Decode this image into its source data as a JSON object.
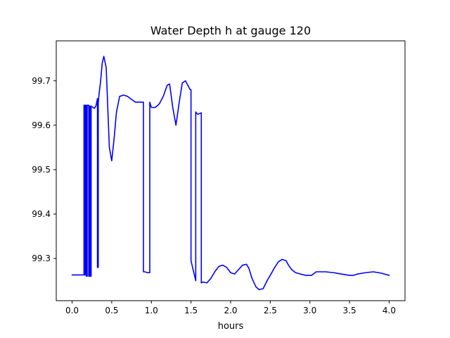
{
  "chart_data": {
    "type": "line",
    "title": "Water Depth h at gauge 120",
    "xlabel": "hours",
    "ylabel": "",
    "xlim": [
      -0.2,
      4.2
    ],
    "ylim": [
      99.205,
      99.79
    ],
    "xticks": [
      0.0,
      0.5,
      1.0,
      1.5,
      2.0,
      2.5,
      3.0,
      3.5,
      4.0
    ],
    "xtick_labels": [
      "0.0",
      "0.5",
      "1.0",
      "1.5",
      "2.0",
      "2.5",
      "3.0",
      "3.5",
      "4.0"
    ],
    "yticks": [
      99.3,
      99.4,
      99.5,
      99.6,
      99.7
    ],
    "ytick_labels": [
      "99.3",
      "99.4",
      "99.5",
      "99.6",
      "99.7"
    ],
    "grid": false,
    "series": [
      {
        "name": "",
        "color": "#0000ff",
        "x": [
          0.0,
          0.15,
          0.15,
          0.16,
          0.16,
          0.17,
          0.17,
          0.18,
          0.18,
          0.19,
          0.19,
          0.21,
          0.21,
          0.22,
          0.22,
          0.23,
          0.23,
          0.24,
          0.24,
          0.28,
          0.3,
          0.32,
          0.32,
          0.33,
          0.33,
          0.34,
          0.36,
          0.38,
          0.4,
          0.43,
          0.45,
          0.47,
          0.5,
          0.53,
          0.56,
          0.6,
          0.65,
          0.7,
          0.75,
          0.8,
          0.85,
          0.88,
          0.9,
          0.9,
          0.92,
          0.95,
          0.98,
          0.98,
          1.0,
          1.05,
          1.1,
          1.15,
          1.2,
          1.23,
          1.27,
          1.31,
          1.35,
          1.39,
          1.43,
          1.46,
          1.49,
          1.5,
          1.5,
          1.52,
          1.56,
          1.56,
          1.58,
          1.59,
          1.63,
          1.63,
          1.65,
          1.7,
          1.75,
          1.8,
          1.85,
          1.9,
          1.95,
          2.0,
          2.05,
          2.1,
          2.15,
          2.2,
          2.23,
          2.27,
          2.32,
          2.36,
          2.41,
          2.46,
          2.5,
          2.55,
          2.6,
          2.65,
          2.7,
          2.73,
          2.77,
          2.82,
          2.88,
          2.95,
          3.02,
          3.08,
          3.12,
          3.2,
          3.3,
          3.4,
          3.5,
          3.55,
          3.6,
          3.7,
          3.8,
          3.9,
          4.0
        ],
        "y": [
          99.263,
          99.263,
          99.645,
          99.645,
          99.263,
          99.263,
          99.645,
          99.645,
          99.26,
          99.26,
          99.645,
          99.645,
          99.26,
          99.26,
          99.643,
          99.643,
          99.26,
          99.26,
          99.643,
          99.638,
          99.643,
          99.66,
          99.28,
          99.28,
          99.65,
          99.67,
          99.7,
          99.74,
          99.755,
          99.73,
          99.64,
          99.55,
          99.52,
          99.57,
          99.63,
          99.665,
          99.668,
          99.665,
          99.658,
          99.652,
          99.652,
          99.652,
          99.652,
          99.27,
          99.27,
          99.268,
          99.268,
          99.652,
          99.64,
          99.64,
          99.648,
          99.665,
          99.69,
          99.693,
          99.64,
          99.6,
          99.65,
          99.695,
          99.7,
          99.69,
          99.68,
          99.68,
          99.295,
          99.28,
          99.25,
          99.63,
          99.625,
          99.625,
          99.628,
          99.245,
          99.247,
          99.245,
          99.255,
          99.27,
          99.282,
          99.285,
          99.28,
          99.268,
          99.265,
          99.275,
          99.285,
          99.287,
          99.278,
          99.255,
          99.236,
          99.23,
          99.232,
          99.25,
          99.262,
          99.278,
          99.292,
          99.298,
          99.295,
          99.285,
          99.275,
          99.268,
          99.265,
          99.262,
          99.262,
          99.27,
          99.27,
          99.27,
          99.268,
          99.265,
          99.262,
          99.262,
          99.265,
          99.268,
          99.27,
          99.267,
          99.262
        ]
      }
    ]
  }
}
